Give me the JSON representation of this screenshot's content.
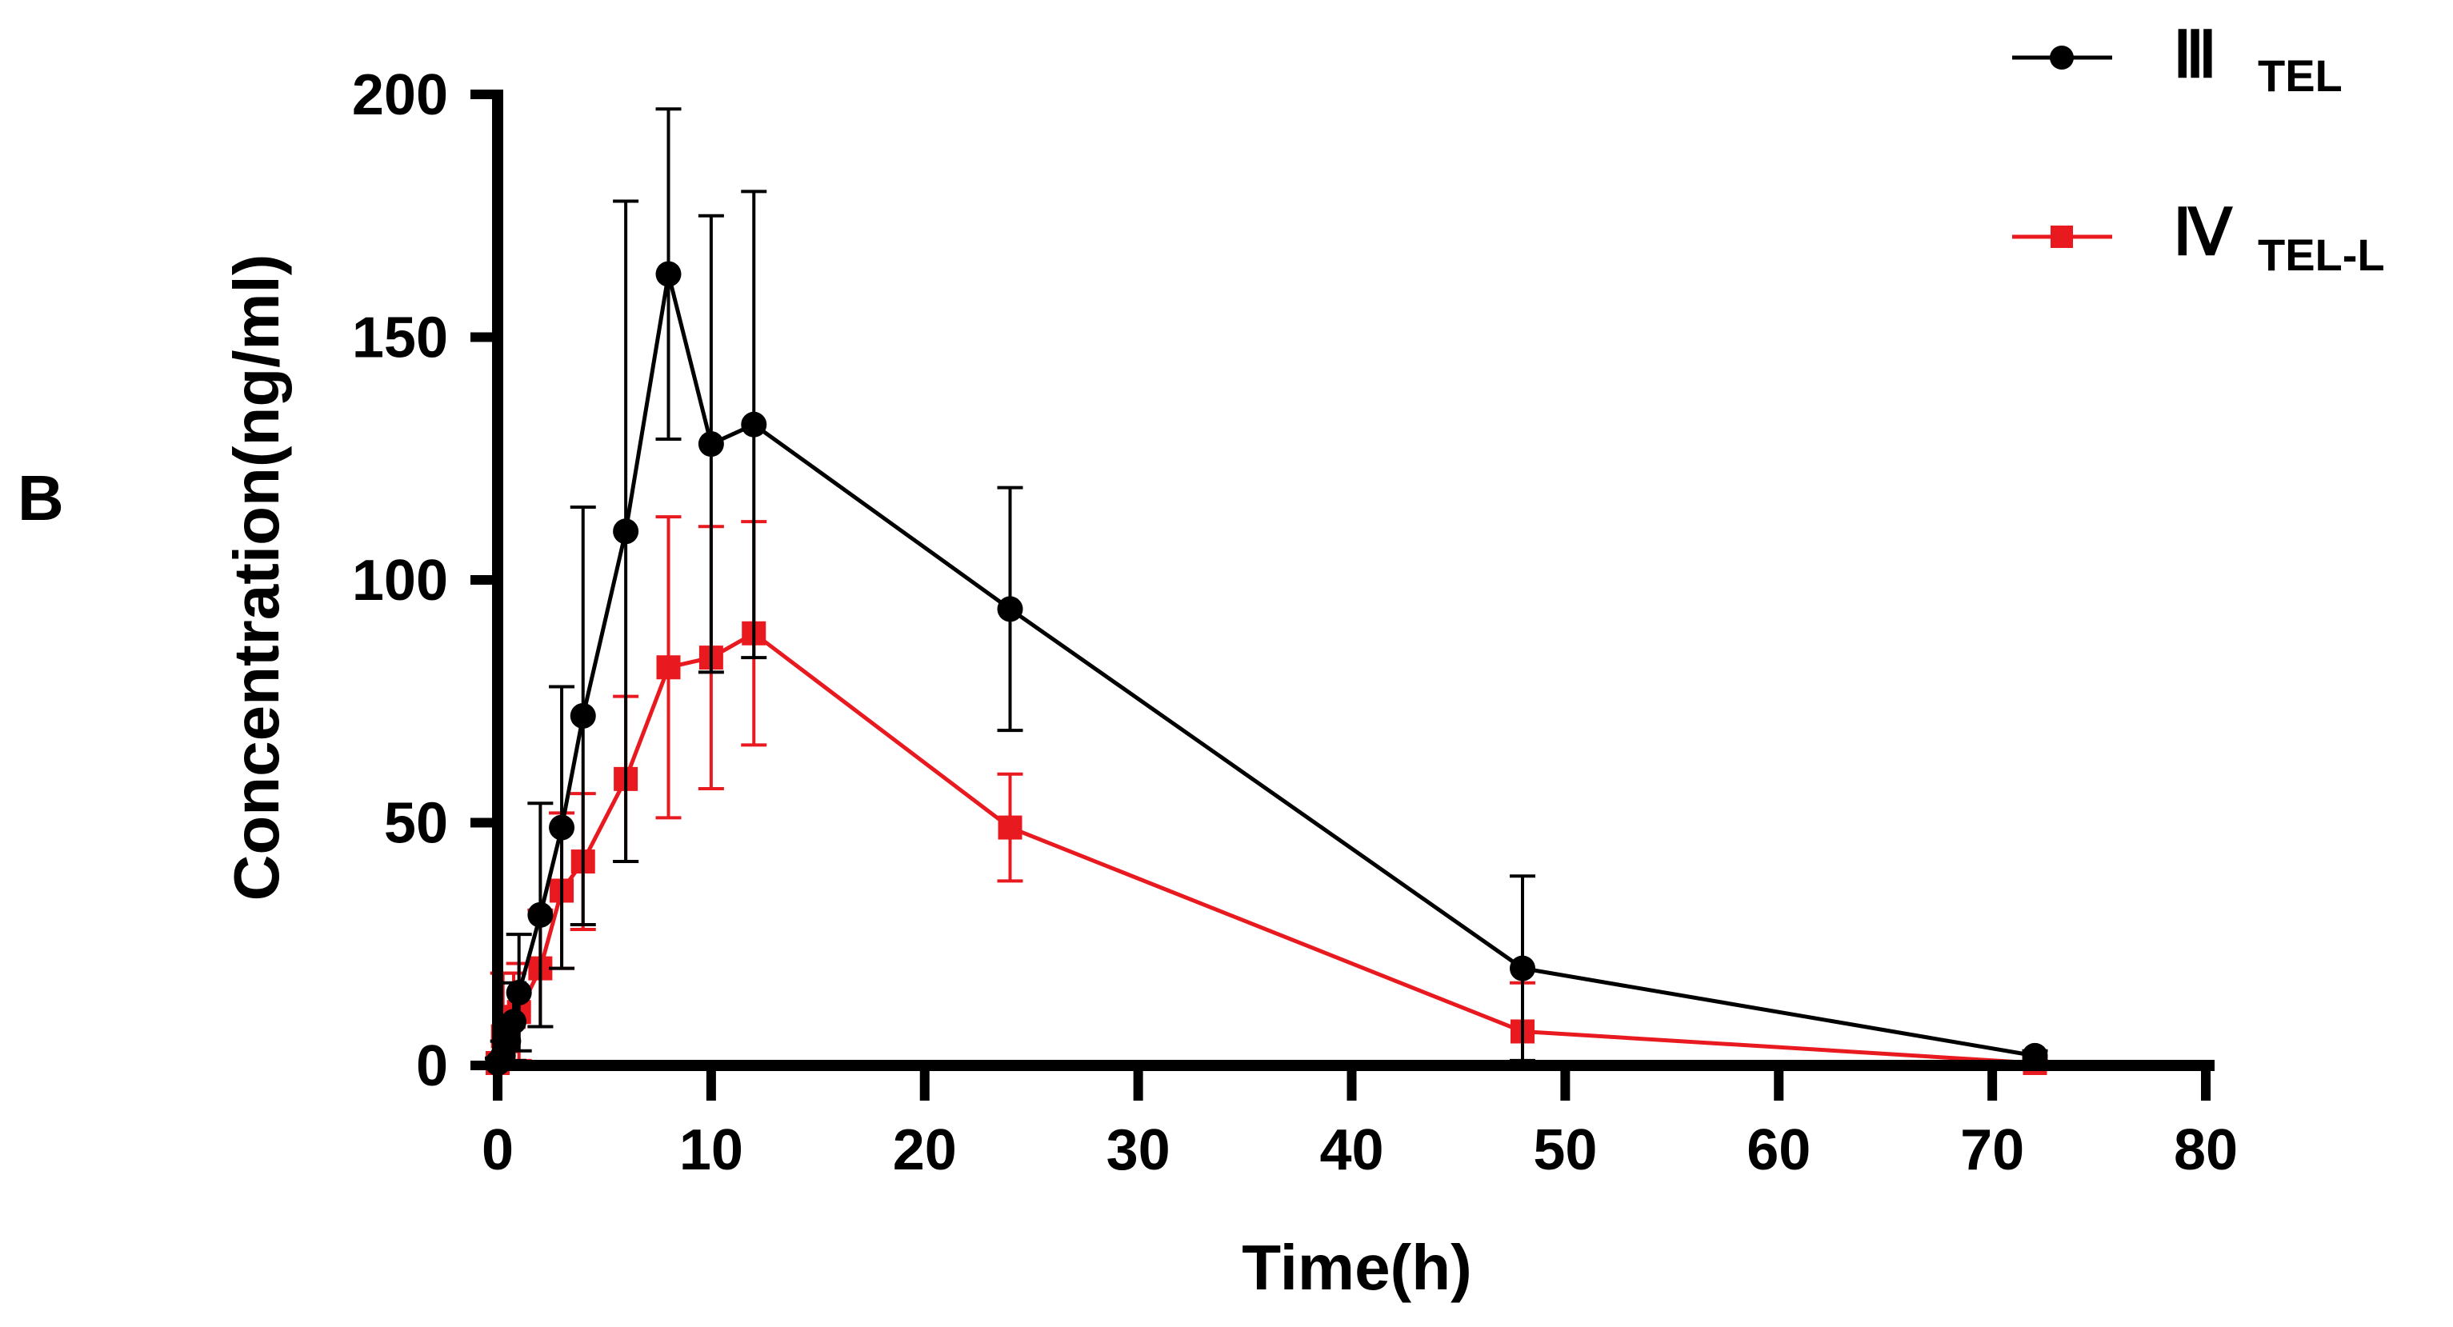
{
  "panel_label": "B",
  "chart_data": {
    "type": "line",
    "title": "",
    "xlabel": "Time(h)",
    "ylabel": "Concentration(ng/ml)",
    "xlim": [
      0,
      80
    ],
    "ylim": [
      0,
      200
    ],
    "xticks": [
      0,
      10,
      20,
      30,
      40,
      50,
      60,
      70,
      80
    ],
    "yticks": [
      0,
      50,
      100,
      150,
      200
    ],
    "xtick_labels": [
      "0",
      "10",
      "20",
      "30",
      "40",
      "50",
      "60",
      "70",
      "80"
    ],
    "ytick_labels": [
      "0",
      "50",
      "100",
      "150",
      "200"
    ],
    "grid": false,
    "legend_position": "top-right",
    "series": [
      {
        "name": "III TEL",
        "label_roman": "Ⅲ",
        "label_sub": "TEL",
        "color": "#000000",
        "marker": "circle",
        "x": [
          0,
          0.25,
          0.5,
          0.75,
          1,
          2,
          3,
          4,
          6,
          8,
          10,
          12,
          24,
          48,
          72
        ],
        "y": [
          0.5,
          2,
          5,
          9,
          15,
          31,
          49,
          72,
          110,
          163,
          128,
          132,
          94,
          20,
          2
        ],
        "err": [
          1,
          3,
          5,
          8,
          12,
          23,
          29,
          43,
          68,
          34,
          47,
          48,
          25,
          19,
          1
        ]
      },
      {
        "name": "IV TEL-L",
        "label_roman": "Ⅳ",
        "label_sub": "TEL-L",
        "color": "#e8191f",
        "marker": "square",
        "x": [
          0,
          0.25,
          0.5,
          0.75,
          1,
          2,
          3,
          4,
          6,
          8,
          10,
          12,
          24,
          48,
          72
        ],
        "y": [
          0.5,
          6,
          5,
          10,
          11,
          20,
          36,
          42,
          59,
          82,
          84,
          89,
          49,
          7,
          0.5
        ],
        "err": [
          1,
          13,
          5,
          9,
          10,
          12,
          16,
          14,
          17,
          31,
          27,
          23,
          11,
          10,
          1
        ]
      }
    ]
  }
}
